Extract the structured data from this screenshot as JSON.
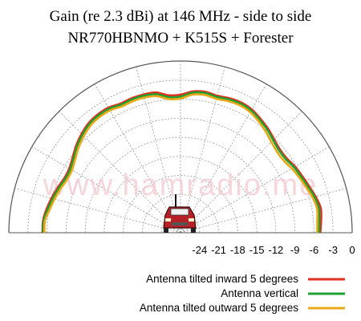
{
  "chart_data": {
    "type": "polar",
    "title": "Gain (re 2.3 dBi) at 146 MHz - side to side",
    "subtitle": "NR770HBNMO + K515S + Forester",
    "watermark": "www.hamradio.me",
    "radial_ticks": [
      "-24",
      "-21",
      "-18",
      "-15",
      "-12",
      "-9",
      "-6",
      "-3",
      "0"
    ],
    "radial_range": [
      -27,
      0
    ],
    "angle_range_deg": [
      0,
      180
    ],
    "grid": true,
    "legend_position": "bottom-right",
    "angles_deg": [
      0,
      5,
      10,
      15,
      20,
      25,
      30,
      35,
      40,
      45,
      50,
      55,
      60,
      65,
      70,
      75,
      80,
      85,
      90,
      95,
      100,
      105,
      110,
      115,
      120,
      125,
      130,
      135,
      140,
      145,
      150,
      155,
      160,
      165,
      170,
      175,
      180
    ],
    "series": [
      {
        "name": "Antenna tilted inward 5 degrees",
        "color": "#e03020",
        "values": [
          -5,
          -4.8,
          -4.6,
          -5,
          -5.5,
          -5.9,
          -6.2,
          -6.6,
          -6.6,
          -6.2,
          -5.6,
          -5.1,
          -4.6,
          -4.4,
          -4.5,
          -4.7,
          -4.5,
          -4.7,
          -5.3,
          -5.3,
          -4.6,
          -4.5,
          -4.5,
          -4.6,
          -4.3,
          -4.3,
          -4.5,
          -5,
          -5.6,
          -6.3,
          -6.8,
          -6.8,
          -6.4,
          -6,
          -5.6,
          -5.3,
          -5.3
        ]
      },
      {
        "name": "Antenna vertical",
        "color": "#20a030",
        "values": [
          -5.2,
          -5.1,
          -4.9,
          -5.2,
          -5.7,
          -6.1,
          -6.4,
          -6.8,
          -6.8,
          -6.4,
          -5.8,
          -5.3,
          -4.8,
          -4.6,
          -4.7,
          -4.9,
          -4.7,
          -4.9,
          -5.6,
          -5.6,
          -4.9,
          -4.7,
          -4.7,
          -4.8,
          -4.5,
          -4.5,
          -4.7,
          -5.2,
          -5.8,
          -6.5,
          -7,
          -7,
          -6.6,
          -6.2,
          -5.8,
          -5.4,
          -5.4
        ]
      },
      {
        "name": "Antenna tilted outward 5 degrees",
        "color": "#e8a818",
        "values": [
          -5.5,
          -5.4,
          -5.2,
          -5.5,
          -6,
          -6.4,
          -6.8,
          -7.2,
          -7.2,
          -6.8,
          -6.2,
          -5.6,
          -5.1,
          -4.9,
          -5,
          -5.2,
          -5,
          -5.2,
          -5.9,
          -5.9,
          -5.2,
          -5,
          -5,
          -5.1,
          -4.8,
          -4.8,
          -5,
          -5.5,
          -6.1,
          -6.8,
          -7.3,
          -7.3,
          -6.9,
          -6.5,
          -6.1,
          -5.6,
          -5.6
        ]
      }
    ]
  }
}
